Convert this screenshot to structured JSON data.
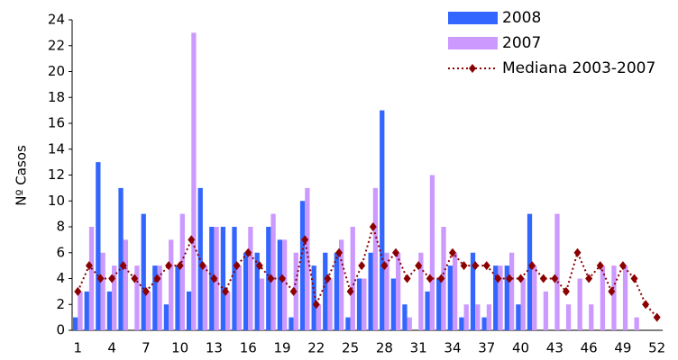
{
  "chart_data": {
    "type": "bar",
    "y_label": "Nº Casos",
    "categories": [
      1,
      null,
      null,
      4,
      null,
      null,
      7,
      null,
      null,
      10,
      null,
      null,
      13,
      null,
      null,
      16,
      null,
      null,
      19,
      null,
      null,
      22,
      null,
      null,
      25,
      null,
      null,
      28,
      null,
      null,
      31,
      null,
      null,
      34,
      null,
      null,
      37,
      null,
      null,
      40,
      null,
      null,
      43,
      null,
      null,
      46,
      null,
      null,
      49,
      null,
      null,
      52
    ],
    "series": [
      {
        "name": "2008",
        "color": "#3366ff",
        "type": "bar",
        "values": [
          1,
          3,
          13,
          3,
          11,
          0,
          9,
          5,
          2,
          5,
          3,
          11,
          8,
          8,
          8,
          6,
          6,
          8,
          7,
          1,
          10,
          5,
          6,
          6,
          1,
          4,
          6,
          17,
          4,
          2,
          0,
          3,
          4,
          5,
          1,
          6,
          1,
          5,
          5,
          2,
          9,
          null,
          null,
          null,
          null,
          null,
          null,
          null,
          null,
          null,
          null,
          null
        ]
      },
      {
        "name": "2007",
        "color": "#cc99ff",
        "type": "bar",
        "values": [
          3,
          8,
          6,
          5,
          7,
          5,
          3,
          5,
          7,
          9,
          23,
          5,
          8,
          3,
          5,
          8,
          4,
          9,
          7,
          6,
          11,
          2,
          4,
          7,
          8,
          4,
          11,
          6,
          6,
          1,
          6,
          12,
          8,
          6,
          2,
          2,
          2,
          5,
          6,
          4,
          5,
          3,
          9,
          2,
          4,
          2,
          5,
          5,
          5,
          1,
          0,
          0
        ]
      },
      {
        "name": "Mediana 2003-2007",
        "color": "#8b0000",
        "type": "line",
        "values": [
          3,
          5,
          4,
          4,
          5,
          4,
          3,
          4,
          5,
          5,
          7,
          5,
          4,
          3,
          5,
          6,
          5,
          4,
          4,
          3,
          7,
          2,
          4,
          6,
          3,
          5,
          8,
          5,
          6,
          4,
          5,
          4,
          4,
          6,
          5,
          5,
          5,
          4,
          4,
          4,
          5,
          4,
          4,
          3,
          6,
          4,
          5,
          3,
          5,
          4,
          2,
          1
        ]
      }
    ],
    "ylim": [
      0,
      24
    ],
    "yticks": [
      0,
      2,
      4,
      6,
      8,
      10,
      12,
      14,
      16,
      18,
      20,
      22,
      24
    ]
  }
}
